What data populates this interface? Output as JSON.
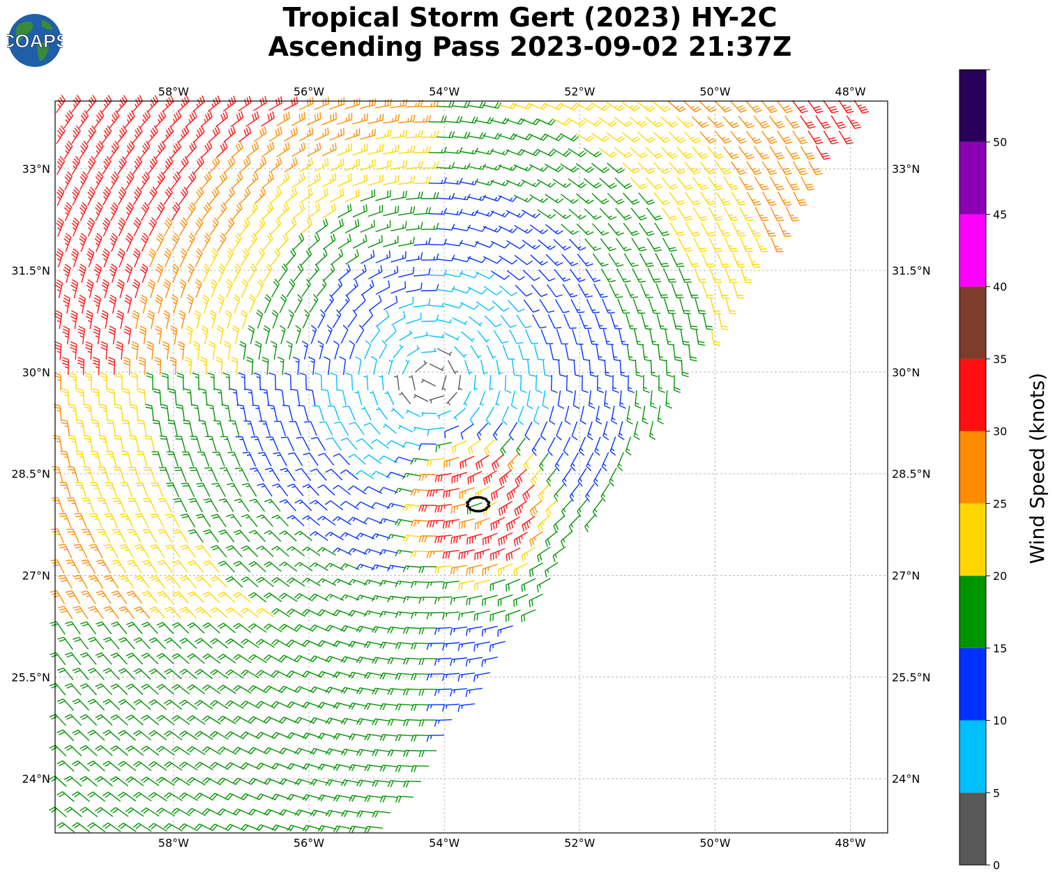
{
  "title": {
    "line1": "Tropical Storm Gert (2023) HY-2C",
    "line2": "Ascending Pass 2023-09-02 21:37Z"
  },
  "logo": {
    "text": "COAPS",
    "icon": "globe-icon"
  },
  "map": {
    "lon_range": [
      -59.75,
      -47.45
    ],
    "lat_range": [
      23.2,
      34.0
    ],
    "lon_ticks": [
      {
        "value": -58,
        "label": "58°W"
      },
      {
        "value": -56,
        "label": "56°W"
      },
      {
        "value": -54,
        "label": "54°W"
      },
      {
        "value": -52,
        "label": "52°W"
      },
      {
        "value": -50,
        "label": "50°W"
      },
      {
        "value": -48,
        "label": "48°W"
      }
    ],
    "lat_ticks": [
      {
        "value": 33,
        "label": "33°N"
      },
      {
        "value": 31.5,
        "label": "31.5°N"
      },
      {
        "value": 30,
        "label": "30°N"
      },
      {
        "value": 28.5,
        "label": "28.5°N"
      },
      {
        "value": 27,
        "label": "27°N"
      },
      {
        "value": 25.5,
        "label": "25.5°N"
      },
      {
        "value": 24,
        "label": "24°N"
      }
    ],
    "gridlines": true,
    "storm_center": {
      "lon": -53.5,
      "lat": 28.05
    },
    "wind_field": {
      "type": "wind barbs",
      "circulation": "cyclonic",
      "center": {
        "lon": -54.2,
        "lat": 29.9
      },
      "swath_edge": "northwest-to-southeast diagonal (eastern edge)"
    }
  },
  "colorbar": {
    "label": "Wind Speed (knots)",
    "ticks": [
      0,
      5,
      10,
      15,
      20,
      25,
      30,
      35,
      40,
      45,
      50
    ],
    "top_value": 55,
    "bins": [
      {
        "min": 0,
        "max": 5,
        "color": "#595959"
      },
      {
        "min": 5,
        "max": 10,
        "color": "#00bfff"
      },
      {
        "min": 10,
        "max": 15,
        "color": "#0032ff"
      },
      {
        "min": 15,
        "max": 20,
        "color": "#009400"
      },
      {
        "min": 20,
        "max": 25,
        "color": "#ffd700"
      },
      {
        "min": 25,
        "max": 30,
        "color": "#ff8c00"
      },
      {
        "min": 30,
        "max": 35,
        "color": "#ff1010"
      },
      {
        "min": 35,
        "max": 40,
        "color": "#7f3c2a"
      },
      {
        "min": 40,
        "max": 45,
        "color": "#ff00ff"
      },
      {
        "min": 45,
        "max": 50,
        "color": "#8c00b4"
      },
      {
        "min": 50,
        "max": 55,
        "color": "#2a005a"
      }
    ]
  }
}
